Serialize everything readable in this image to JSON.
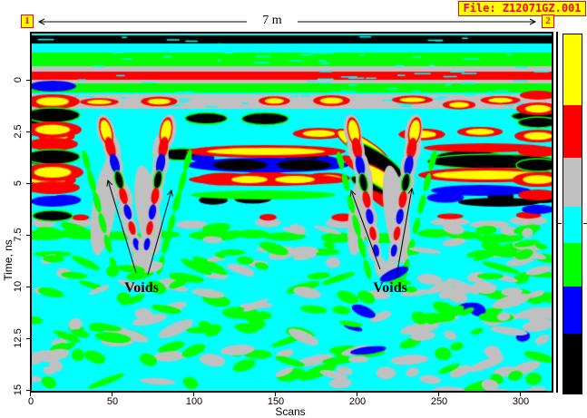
{
  "header": {
    "file_label": "File: Z12071GZ.001"
  },
  "ruler": {
    "label": "7 m",
    "start_marker": "1",
    "end_marker": "2"
  },
  "axes": {
    "x": {
      "label": "Scans",
      "ticks": [
        "0",
        "50",
        "100",
        "150",
        "200",
        "250",
        "300"
      ]
    },
    "y": {
      "label": "Time, ns",
      "ticks": [
        "0",
        "2.5",
        "5",
        "7.5",
        "10",
        "12.5",
        "15"
      ]
    }
  },
  "annotations": {
    "left": {
      "text": "Voids"
    },
    "right": {
      "text": "Voids"
    }
  },
  "colorbar": {
    "colors": [
      "#FFFF00",
      "#FF0000",
      "#C0C0C0",
      "#00FFFF",
      "#00FF00",
      "#0000FF",
      "#000000"
    ]
  },
  "palette": {
    "cyan": "#00FFFF",
    "green": "#00FF00",
    "gray": "#C0C0C0",
    "red": "#FF0000",
    "yellow": "#FFFF00",
    "blue": "#0000FF",
    "black": "#000000",
    "badge_bg": "#FFFF00",
    "badge_fg": "#FF0000"
  },
  "chart_data": {
    "type": "heatmap",
    "title": "",
    "xlabel": "Scans",
    "ylabel": "Time, ns",
    "xlim": [
      0,
      320
    ],
    "ylim_top_to_bottom": [
      -2.3,
      15
    ],
    "x_ticks": [
      0,
      50,
      100,
      150,
      200,
      250,
      300
    ],
    "y_ticks": [
      0,
      2.5,
      5,
      7.5,
      10,
      12.5,
      15
    ],
    "profile_length_label": "7 m",
    "profile_start_marker": "1",
    "profile_end_marker": "2",
    "file": "Z12071GZ.001",
    "amplitude_palette_high_to_low": [
      "#FFFF00",
      "#FF0000",
      "#C0C0C0",
      "#00FFFF",
      "#00FF00",
      "#0000FF",
      "#000000"
    ],
    "annotations": [
      {
        "text": "Voids",
        "label_at": {
          "scan": 68,
          "time_ns": 10.1
        },
        "arrows_point_to": [
          {
            "scan": 47,
            "time_ns": 4.9
          },
          {
            "scan": 87,
            "time_ns": 5.3
          }
        ]
      },
      {
        "text": "Voids",
        "label_at": {
          "scan": 221,
          "time_ns": 10.1
        },
        "arrows_point_to": [
          {
            "scan": 197,
            "time_ns": 5.3
          },
          {
            "scan": 234,
            "time_ns": 5.2
          }
        ]
      }
    ],
    "features": [
      "continuous strong horizontal reflectors from about -1 to 3 ns across the whole profile",
      "layered high-amplitude reflection bands (yellow/red/black/blue) between about 1 and 6.5 ns",
      "two V-shaped diffraction zones interpreted as voids near scans 45-90 and 195-235, reaching down to about 9-10 ns",
      "weak scattered returns (gray/green) over cyan background from 7.5 to 15 ns"
    ]
  }
}
